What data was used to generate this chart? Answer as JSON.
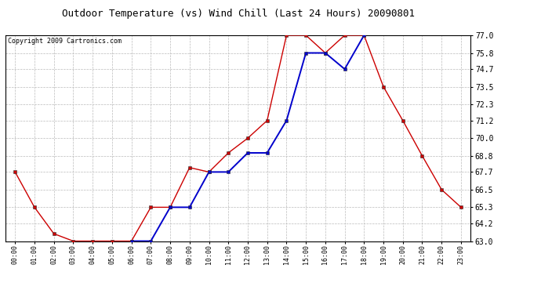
{
  "title": "Outdoor Temperature (vs) Wind Chill (Last 24 Hours) 20090801",
  "copyright": "Copyright 2009 Cartronics.com",
  "x_labels": [
    "00:00",
    "01:00",
    "02:00",
    "03:00",
    "04:00",
    "05:00",
    "06:00",
    "07:00",
    "08:00",
    "09:00",
    "10:00",
    "11:00",
    "12:00",
    "13:00",
    "14:00",
    "15:00",
    "16:00",
    "17:00",
    "18:00",
    "19:00",
    "20:00",
    "21:00",
    "22:00",
    "23:00"
  ],
  "temp_red": [
    67.7,
    65.3,
    63.5,
    63.0,
    63.0,
    63.0,
    63.0,
    65.3,
    65.3,
    68.0,
    67.7,
    69.0,
    70.0,
    71.2,
    77.0,
    77.0,
    75.8,
    77.0,
    77.0,
    73.5,
    71.2,
    68.8,
    66.5,
    65.3
  ],
  "wind_blue": [
    null,
    null,
    null,
    null,
    null,
    null,
    63.0,
    63.0,
    65.3,
    65.3,
    67.7,
    67.7,
    69.0,
    69.0,
    71.2,
    75.8,
    75.8,
    74.7,
    77.0,
    null,
    null,
    null,
    null,
    null
  ],
  "ylim_min": 63.0,
  "ylim_max": 77.0,
  "yticks": [
    63.0,
    64.2,
    65.3,
    66.5,
    67.7,
    68.8,
    70.0,
    71.2,
    72.3,
    73.5,
    74.7,
    75.8,
    77.0
  ],
  "temp_color": "#cc0000",
  "wind_color": "#0000cc",
  "background_color": "#ffffff",
  "grid_color": "#bbbbbb",
  "title_fontsize": 9,
  "copyright_fontsize": 6,
  "tick_fontsize": 7,
  "xtick_fontsize": 6
}
